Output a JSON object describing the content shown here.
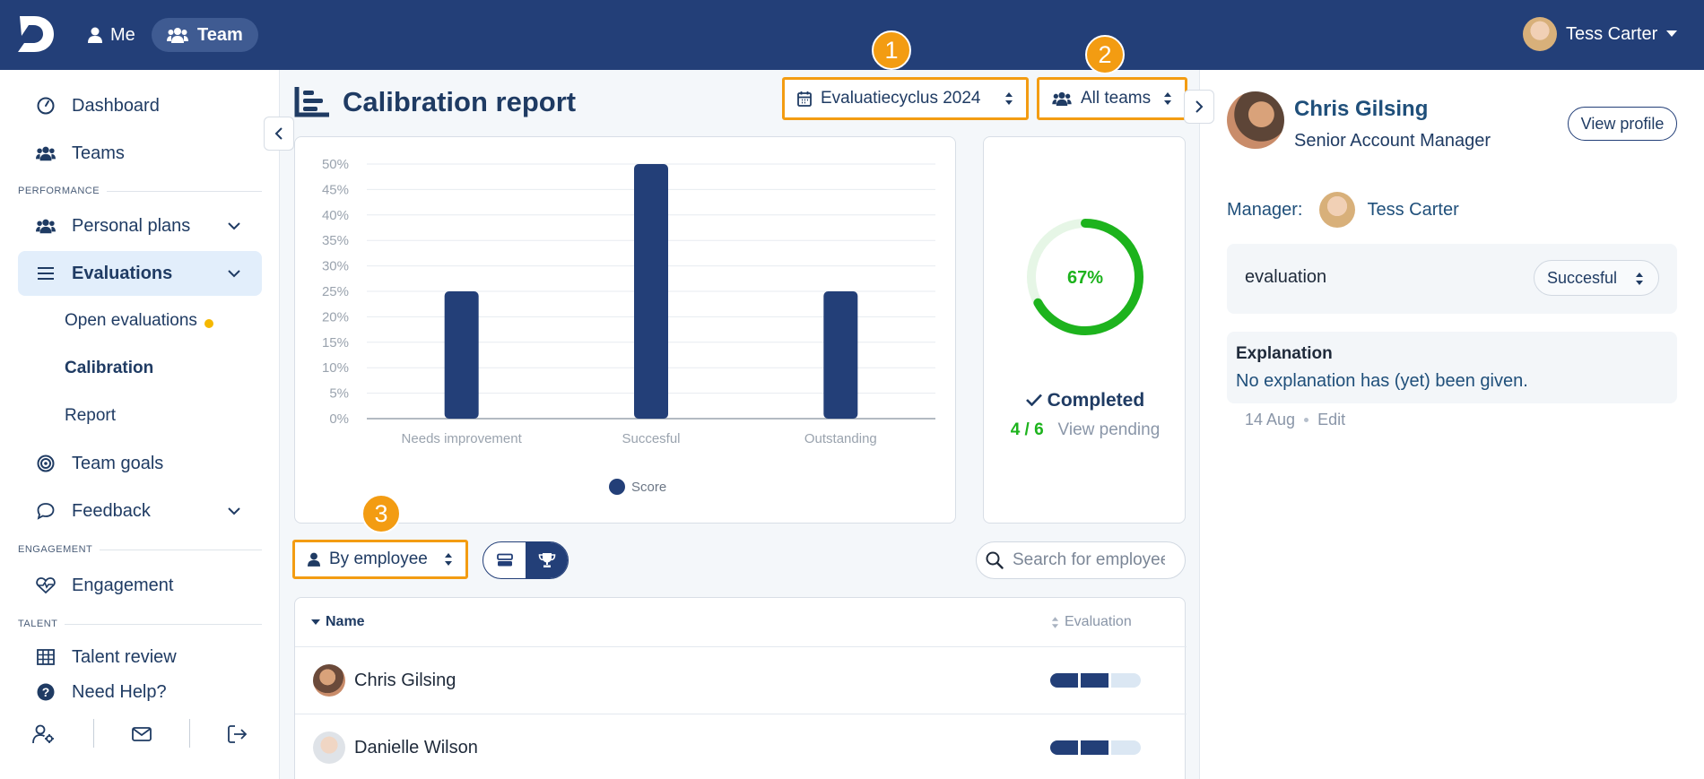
{
  "topbar": {
    "me_label": "Me",
    "team_label": "Team",
    "user_name": "Tess Carter",
    "brand_color": "#233f78"
  },
  "sidebar": {
    "items": [
      {
        "label": "Dashboard",
        "icon": "dashboard-icon"
      },
      {
        "label": "Teams",
        "icon": "users-icon"
      },
      {
        "label": "Personal plans",
        "icon": "users-icon"
      },
      {
        "label": "Evaluations",
        "icon": "list-icon"
      },
      {
        "label": "Team goals",
        "icon": "target-icon"
      },
      {
        "label": "Feedback",
        "icon": "chat-icon"
      },
      {
        "label": "Engagement",
        "icon": "heart-pulse-icon"
      },
      {
        "label": "Talent review",
        "icon": "grid-icon"
      },
      {
        "label": "Need Help?",
        "icon": "help-icon"
      }
    ],
    "sub_items": [
      "Open evaluations",
      "Calibration",
      "Report"
    ],
    "sections": [
      "PERFORMANCE",
      "ENGAGEMENT",
      "TALENT"
    ]
  },
  "main": {
    "title": "Calibration report",
    "cycle_select": "Evaluatiecyclus 2024",
    "teams_select": "All teams",
    "group_select": "By employee",
    "search_placeholder": "Search for employee",
    "badges": [
      "1",
      "2",
      "3"
    ],
    "donut": {
      "percent_label": "67%",
      "percent": 67,
      "completed_label": "Completed",
      "count": "4 / 6",
      "pending_label": "View pending",
      "accent": "#1db31d"
    },
    "table": {
      "col_name": "Name",
      "col_eval": "Evaluation",
      "rows": [
        {
          "name": "Chris Gilsing",
          "level": 2
        },
        {
          "name": "Danielle Wilson",
          "level": 2
        }
      ]
    }
  },
  "chart_data": {
    "type": "bar",
    "categories": [
      "Needs improvement",
      "Succesful",
      "Outstanding"
    ],
    "series": [
      {
        "name": "Score",
        "values": [
          25,
          50,
          25
        ]
      }
    ],
    "ylim": [
      0,
      50
    ],
    "yticks": [
      "0%",
      "5%",
      "10%",
      "15%",
      "20%",
      "25%",
      "30%",
      "35%",
      "40%",
      "45%",
      "50%"
    ],
    "grid": true,
    "legend": "bottom",
    "bar_color": "#233f78"
  },
  "right_panel": {
    "name": "Chris Gilsing",
    "role": "Senior Account Manager",
    "view_profile": "View profile",
    "manager_label": "Manager:",
    "manager_name": "Tess Carter",
    "eval_label": "evaluation",
    "eval_value": "Succesful",
    "explanation_title": "Explanation",
    "explanation_text": "No explanation has (yet) been given.",
    "date": "14 Aug",
    "edit_label": "Edit"
  }
}
